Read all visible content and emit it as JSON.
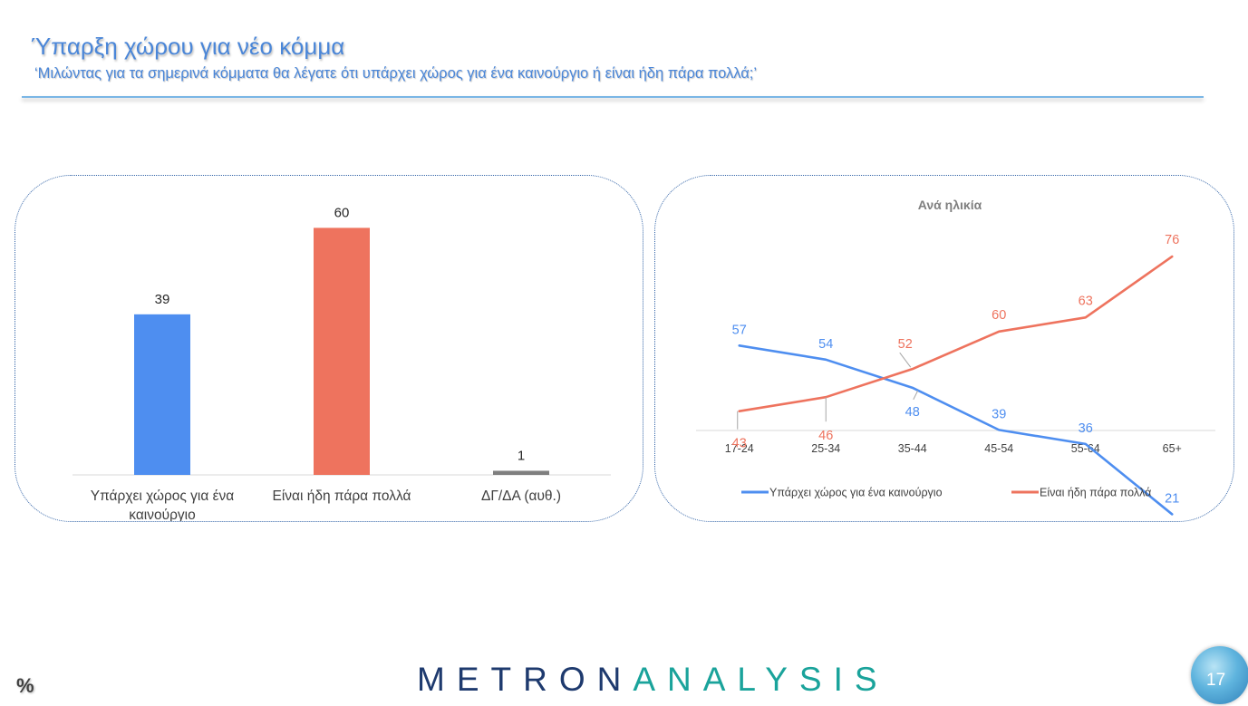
{
  "header": {
    "title": "Ύπαρξη χώρου για νέο κόμμα",
    "subtitle": "‘Μιλώντας για τα σημερινά κόμματα θα λέγατε ότι υπάρχει χώρος για ένα καινούργιο ή είναι ήδη πάρα πολλά;’"
  },
  "footer": {
    "unit": "%",
    "logo_part1": "METRON",
    "logo_part2": "ANALYSIS",
    "page_number": "17"
  },
  "colors": {
    "blue": "#4e8ef0",
    "orange": "#ee735e",
    "gray": "#7f7f7f",
    "title": "#4a86d8"
  },
  "chart_data": [
    {
      "type": "bar",
      "title": "",
      "xlabel": "",
      "ylabel": "",
      "categories": [
        "Υπάρχει χώρος για ένα καινούργιο",
        "Είναι ήδη πάρα πολλά",
        "ΔΓ/ΔΑ (αυθ.)"
      ],
      "values": [
        39,
        60,
        1
      ],
      "bar_colors": [
        "#4e8ef0",
        "#ee735e",
        "#7f7f7f"
      ],
      "ylim": [
        0,
        70
      ],
      "grid": false,
      "legend": "none"
    },
    {
      "type": "line",
      "title": "Ανά ηλικία",
      "xlabel": "",
      "ylabel": "",
      "categories": [
        "17-24",
        "25-34",
        "35-44",
        "45-54",
        "55-64",
        "65+"
      ],
      "series": [
        {
          "name": "Υπάρχει χώρος για ένα καινούργιο",
          "values": [
            57,
            54,
            48,
            39,
            36,
            21
          ],
          "color": "#4e8ef0"
        },
        {
          "name": "Είναι ήδη πάρα πολλά",
          "values": [
            43,
            46,
            52,
            60,
            63,
            76
          ],
          "color": "#ee735e"
        }
      ],
      "ylim": [
        0,
        80
      ],
      "grid": false,
      "legend": "bottom"
    }
  ]
}
